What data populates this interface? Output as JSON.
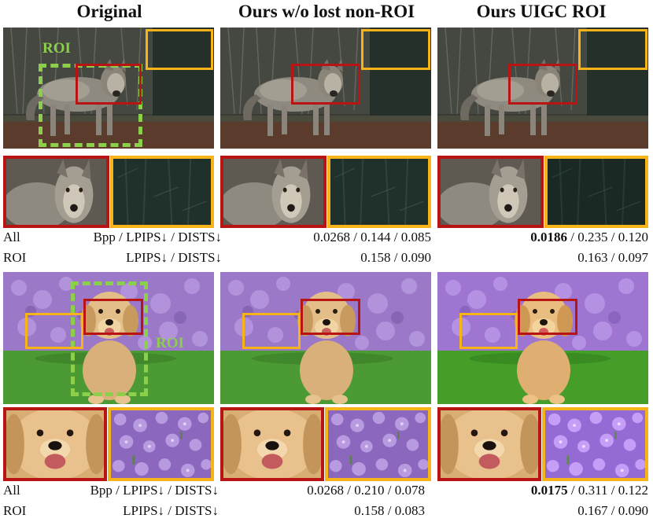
{
  "headers": [
    "Original",
    "Ours w/o lost  non-ROI",
    "Ours UIGC  ROI"
  ],
  "roi_label": "ROI",
  "row_labels": {
    "all": "All",
    "roi": "ROI"
  },
  "metric_labels": {
    "all": "Bpp / LPIPS↓ / DISTS↓",
    "roi": "LPIPS↓ / DISTS↓"
  },
  "rows": [
    {
      "subject": "coyote",
      "ours_wo_lost": {
        "all": "0.0268 / 0.144 / 0.085",
        "roi": "0.158 / 0.090"
      },
      "ours_uigc": {
        "bpp": "0.0186",
        "all_rest": " / 0.235 / 0.120",
        "roi": "0.163 / 0.097"
      }
    },
    {
      "subject": "puppy",
      "ours_wo_lost": {
        "all": "0.0268 / 0.210 / 0.078",
        "roi": "0.158 / 0.083"
      },
      "ours_uigc": {
        "bpp": "0.0175",
        "all_rest": " / 0.311 / 0.122",
        "roi": "0.167 / 0.090"
      }
    }
  ],
  "colors": {
    "zoom_red": "#b81414",
    "zoom_orange": "#f6b418",
    "roi_green": "#8ccf4a"
  }
}
